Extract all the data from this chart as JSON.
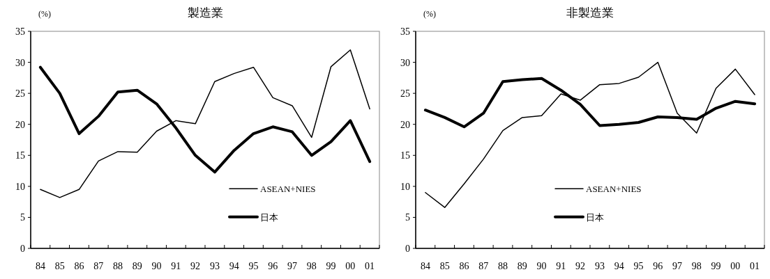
{
  "chart_data": [
    {
      "type": "line",
      "title": "製造業",
      "ylabel": "(%)",
      "categories": [
        "84",
        "85",
        "86",
        "87",
        "88",
        "89",
        "90",
        "91",
        "92",
        "93",
        "94",
        "95",
        "96",
        "97",
        "98",
        "99",
        "00",
        "01"
      ],
      "ylim": [
        0,
        35
      ],
      "yticks": [
        0,
        5,
        10,
        15,
        20,
        25,
        30,
        35
      ],
      "grid": false,
      "legend": "bottom right",
      "marker": "none",
      "line_style": "solid",
      "series": [
        {
          "name": "ASEAN+NIES",
          "color": "#000000",
          "values": [
            9.5,
            8.2,
            9.5,
            14.1,
            15.6,
            15.5,
            18.9,
            20.6,
            20.1,
            26.9,
            28.2,
            29.2,
            24.3,
            23.0,
            17.9,
            29.3,
            32.0,
            22.5
          ]
        },
        {
          "name": "日本",
          "color": "#000000",
          "values": [
            29.2,
            25.0,
            18.5,
            21.3,
            25.2,
            25.5,
            23.3,
            19.4,
            15.0,
            12.3,
            15.8,
            18.5,
            19.6,
            18.8,
            15.0,
            17.2,
            20.6,
            14.0
          ]
        }
      ]
    },
    {
      "type": "line",
      "title": "非製造業",
      "ylabel": "(%)",
      "categories": [
        "84",
        "85",
        "86",
        "87",
        "88",
        "89",
        "90",
        "91",
        "92",
        "93",
        "94",
        "95",
        "96",
        "97",
        "98",
        "99",
        "00",
        "01"
      ],
      "ylim": [
        0,
        35
      ],
      "yticks": [
        0,
        5,
        10,
        15,
        20,
        25,
        30,
        35
      ],
      "grid": false,
      "legend": "bottom",
      "marker": "none",
      "line_style": "solid",
      "series": [
        {
          "name": "ASEAN+NIES",
          "color": "#000000",
          "values": [
            9.0,
            6.6,
            10.4,
            14.4,
            19.0,
            21.1,
            21.4,
            24.9,
            23.9,
            26.4,
            26.6,
            27.6,
            30.0,
            21.8,
            18.6,
            25.8,
            28.9,
            24.8
          ]
        },
        {
          "name": "日本",
          "color": "#000000",
          "values": [
            22.3,
            21.1,
            19.6,
            21.8,
            26.9,
            27.2,
            27.4,
            25.5,
            23.2,
            19.8,
            20.0,
            20.3,
            21.2,
            21.1,
            20.8,
            22.6,
            23.7,
            23.3
          ]
        }
      ]
    }
  ]
}
